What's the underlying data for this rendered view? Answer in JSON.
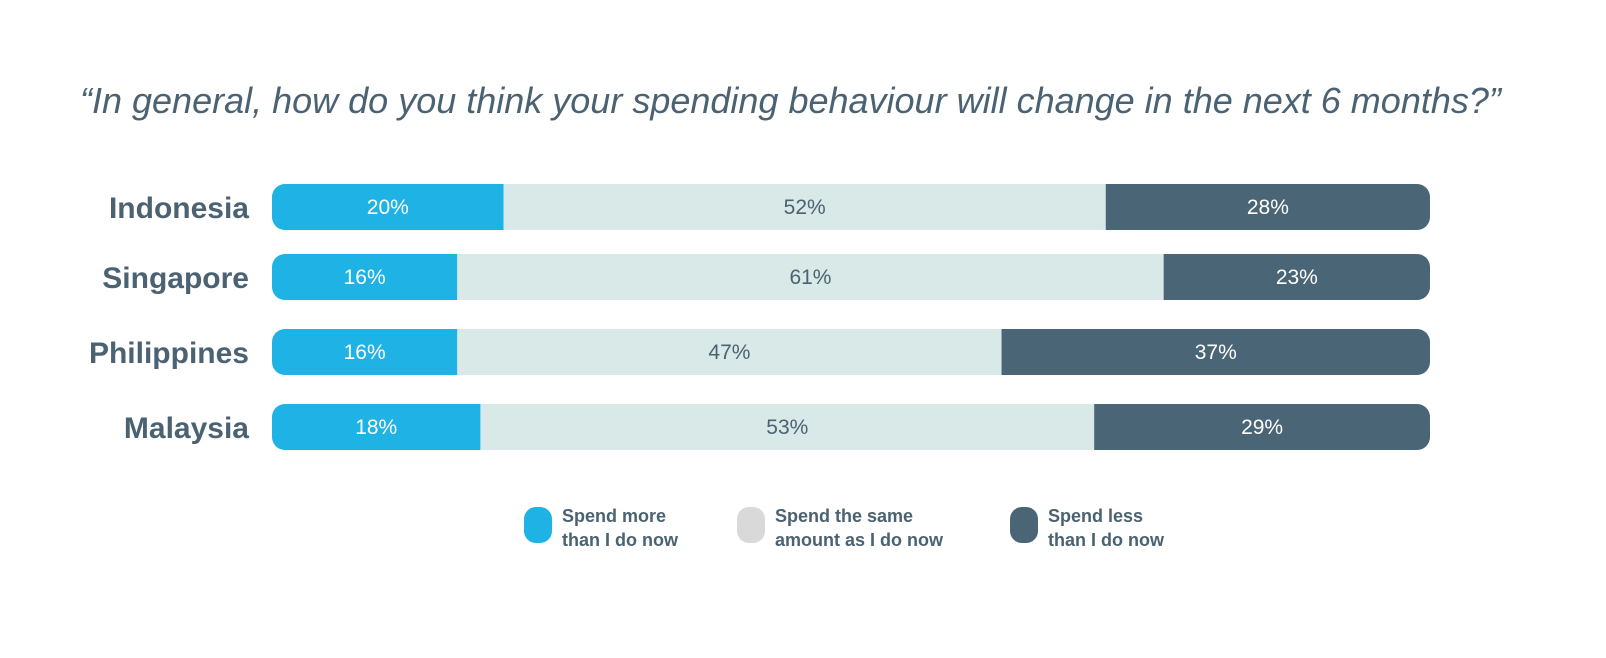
{
  "chart_data": {
    "type": "bar",
    "orientation": "horizontal",
    "stacked": true,
    "normalized": true,
    "title": "“In general, how do you think your spending behaviour will change in the next 6 months?”",
    "xlabel": "",
    "ylabel": "",
    "xlim": [
      0,
      100
    ],
    "grid": false,
    "legend_position": "bottom",
    "categories": [
      "Indonesia",
      "Singapore",
      "Philippines",
      "Malaysia"
    ],
    "series": [
      {
        "name": "Spend more than I do now",
        "legend_lines": [
          "Spend more",
          "than I do now"
        ],
        "color": "#1eb2e5",
        "label_color": "#ffffff",
        "swatch_color": "#1eb2e5",
        "values": [
          20,
          16,
          16,
          18
        ],
        "labels": [
          "20%",
          "16%",
          "16%",
          "18%"
        ]
      },
      {
        "name": "Spend the same amount as I do now",
        "legend_lines": [
          "Spend the same",
          "amount as I do now"
        ],
        "color": "#d8e9e8",
        "label_color": "#4a6272",
        "swatch_color": "#d9d9d9",
        "values": [
          52,
          61,
          47,
          53
        ],
        "labels": [
          "52%",
          "61%",
          "47%",
          "53%"
        ]
      },
      {
        "name": "Spend less than I do now",
        "legend_lines": [
          "Spend less",
          "than I do now"
        ],
        "color": "#4a6575",
        "label_color": "#ffffff",
        "swatch_color": "#4a6575",
        "values": [
          28,
          23,
          37,
          29
        ],
        "labels": [
          "28%",
          "23%",
          "37%",
          "29%"
        ]
      }
    ]
  }
}
